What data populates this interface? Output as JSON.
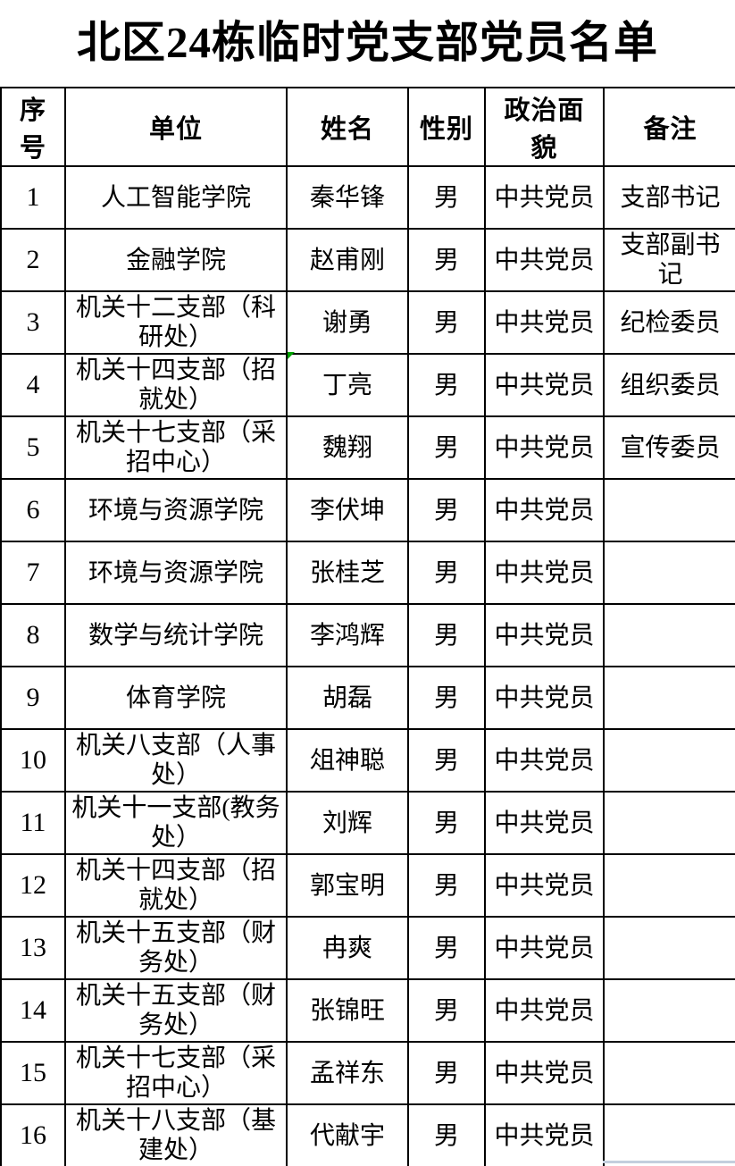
{
  "title": "北区24栋临时党支部党员名单",
  "table": {
    "headers": [
      "序号",
      "单位",
      "姓名",
      "性别",
      "政治面貌",
      "备注"
    ],
    "rows": [
      {
        "no": "1",
        "unit": "人工智能学院",
        "name": "秦华锋",
        "gender": "男",
        "status": "中共党员",
        "remark": "支部书记"
      },
      {
        "no": "2",
        "unit": "金融学院",
        "name": "赵甫刚",
        "gender": "男",
        "status": "中共党员",
        "remark": "支部副书记"
      },
      {
        "no": "3",
        "unit": "机关十二支部（科研处）",
        "name": "谢勇",
        "gender": "男",
        "status": "中共党员",
        "remark": "纪检委员"
      },
      {
        "no": "4",
        "unit": "机关十四支部（招就处）",
        "name": "丁亮",
        "gender": "男",
        "status": "中共党员",
        "remark": "组织委员"
      },
      {
        "no": "5",
        "unit": "机关十七支部（采招中心）",
        "name": "魏翔",
        "gender": "男",
        "status": "中共党员",
        "remark": "宣传委员"
      },
      {
        "no": "6",
        "unit": "环境与资源学院",
        "name": "李伏坤",
        "gender": "男",
        "status": "中共党员",
        "remark": ""
      },
      {
        "no": "7",
        "unit": "环境与资源学院",
        "name": "张桂芝",
        "gender": "男",
        "status": "中共党员",
        "remark": ""
      },
      {
        "no": "8",
        "unit": "数学与统计学院",
        "name": "李鸿辉",
        "gender": "男",
        "status": "中共党员",
        "remark": ""
      },
      {
        "no": "9",
        "unit": "体育学院",
        "name": "胡磊",
        "gender": "男",
        "status": "中共党员",
        "remark": ""
      },
      {
        "no": "10",
        "unit": "机关八支部（人事处）",
        "name": "俎神聪",
        "gender": "男",
        "status": "中共党员",
        "remark": ""
      },
      {
        "no": "11",
        "unit": "机关十一支部(教务处）",
        "name": "刘辉",
        "gender": "男",
        "status": "中共党员",
        "remark": ""
      },
      {
        "no": "12",
        "unit": "机关十四支部（招就处）",
        "name": "郭宝明",
        "gender": "男",
        "status": "中共党员",
        "remark": ""
      },
      {
        "no": "13",
        "unit": "机关十五支部（财务处）",
        "name": "冉爽",
        "gender": "男",
        "status": "中共党员",
        "remark": ""
      },
      {
        "no": "14",
        "unit": "机关十五支部（财务处）",
        "name": "张锦旺",
        "gender": "男",
        "status": "中共党员",
        "remark": ""
      },
      {
        "no": "15",
        "unit": "机关十七支部（采招中心）",
        "name": "孟祥东",
        "gender": "男",
        "status": "中共党员",
        "remark": ""
      },
      {
        "no": "16",
        "unit": "机关十八支部（基建处）",
        "name": "代献宇",
        "gender": "男",
        "status": "中共党员",
        "remark": ""
      }
    ]
  },
  "indicators": {
    "cell_flag": {
      "description": "green-triangle-flag",
      "row": "4",
      "column": "姓名",
      "color": "#00a000"
    }
  },
  "colors": {
    "border": "#000000",
    "text": "#000000",
    "background": "#ffffff",
    "bottom_edge_strip": "#c3cedd"
  }
}
